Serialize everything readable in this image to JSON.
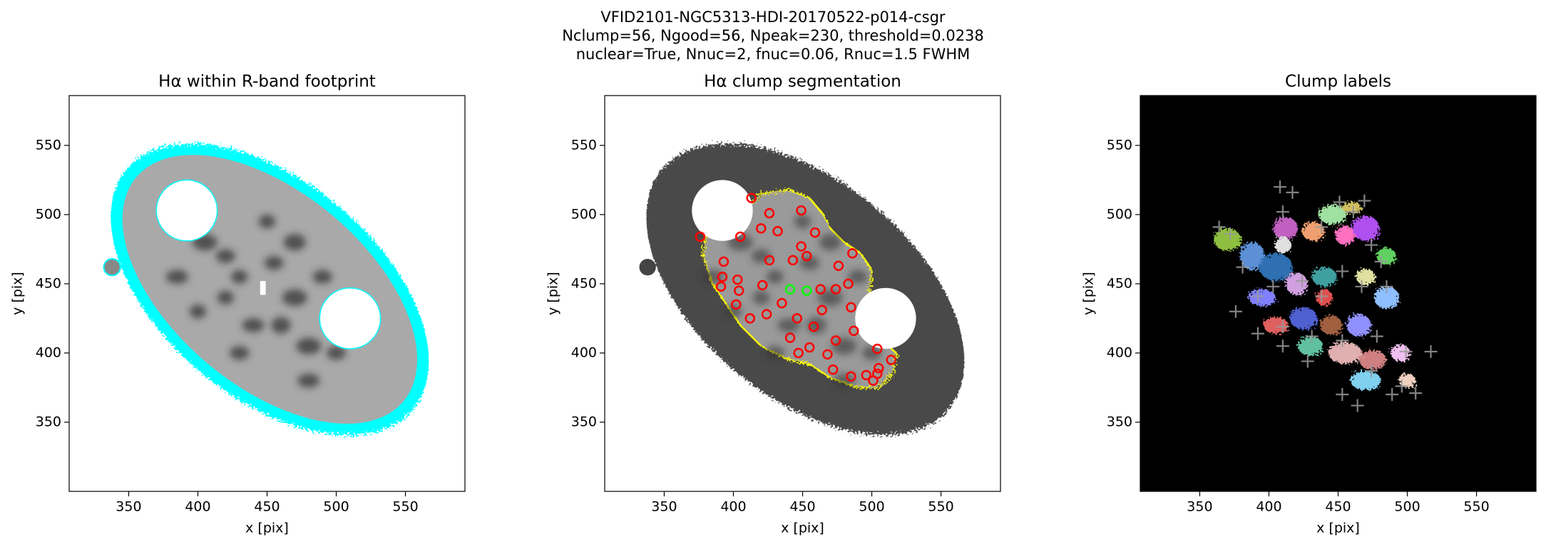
{
  "title": [
    "VFID2101-NGC5313-HDI-20170522-p014-csgr",
    "Nclump=56, Ngood=56, Npeak=230, threshold=0.0238",
    "nuclear=True, Nnuc=2, fnuc=0.06, Rnuc=1.5 FWHM"
  ],
  "chart_data": [
    {
      "type": "image",
      "title": "Hα within R-band footprint",
      "xlabel": "x [pix]",
      "ylabel": "y [pix]",
      "xlim": [
        307,
        593
      ],
      "ylim": [
        300,
        586
      ],
      "xticks": [
        350,
        400,
        450,
        500,
        550
      ],
      "yticks": [
        350,
        400,
        450,
        500,
        550
      ]
    },
    {
      "type": "image",
      "title": "Hα clump segmentation",
      "xlabel": "x [pix]",
      "ylabel": "y [pix]",
      "xlim": [
        307,
        593
      ],
      "ylim": [
        300,
        586
      ],
      "xticks": [
        350,
        400,
        450,
        500,
        550
      ],
      "yticks": [
        350,
        400,
        450,
        500,
        550
      ],
      "series": [
        {
          "color": "#ff0000",
          "marker": "circle",
          "x": [
            413,
            426,
            449,
            420,
            405,
            432,
            459,
            449,
            393,
            426,
            443,
            453,
            486,
            476,
            392,
            403,
            404,
            391,
            421,
            463,
            474,
            483,
            435,
            402,
            424,
            464,
            485,
            412,
            446,
            458,
            487,
            441,
            455,
            474,
            447,
            468,
            504,
            514,
            472,
            485,
            496,
            505,
            501,
            504,
            376
          ],
          "y": [
            512,
            501,
            503,
            490,
            484,
            488,
            487,
            477,
            466,
            467,
            467,
            470,
            472,
            463,
            455,
            453,
            445,
            448,
            449,
            446,
            446,
            450,
            436,
            435,
            428,
            431,
            433,
            425,
            425,
            419,
            416,
            411,
            404,
            409,
            400,
            399,
            403,
            395,
            388,
            383,
            384,
            389,
            380,
            385,
            484
          ]
        },
        {
          "color": "#00ff00",
          "marker": "circle",
          "x": [
            441,
            453
          ],
          "y": [
            446,
            445
          ]
        }
      ]
    },
    {
      "type": "image",
      "title": "Clump labels",
      "xlabel": "x [pix]",
      "ylabel": "y [pix]",
      "xlim": [
        307,
        593
      ],
      "ylim": [
        300,
        586
      ],
      "xticks": [
        350,
        400,
        450,
        500,
        550
      ],
      "yticks": [
        350,
        400,
        450,
        500,
        550
      ],
      "series": [
        {
          "color": "#999999",
          "marker": "plus",
          "x": [
            364,
            372,
            408,
            417,
            410,
            451,
            469,
            461,
            438,
            474,
            481,
            381,
            392,
            403,
            424,
            438,
            453,
            467,
            485,
            376,
            410,
            431,
            453,
            478,
            410,
            499,
            517,
            474,
            496,
            453,
            464,
            506,
            489,
            392,
            428
          ],
          "y": [
            491,
            486,
            520,
            516,
            502,
            509,
            510,
            502,
            491,
            478,
            466,
            462,
            441,
            448,
            452,
            441,
            459,
            448,
            448,
            430,
            419,
            412,
            409,
            412,
            405,
            401,
            401,
            387,
            376,
            370,
            362,
            371,
            370,
            414,
            394
          ]
        }
      ]
    }
  ]
}
